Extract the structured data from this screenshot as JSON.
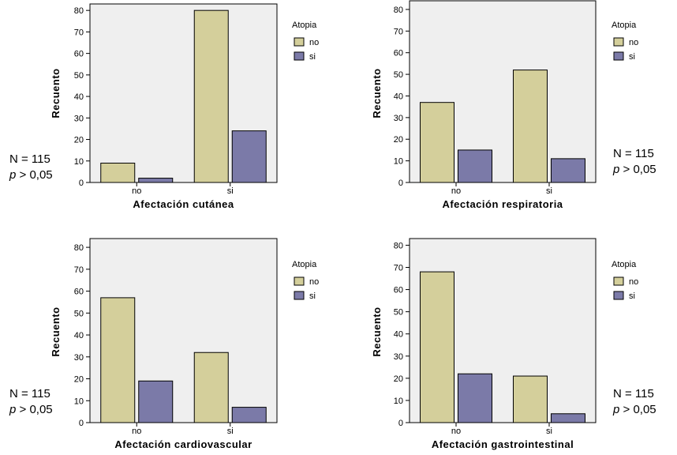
{
  "colors": {
    "no": "#d4cf9b",
    "si": "#7b7aa8",
    "plot_bg": "#efefef",
    "stroke": "#000000"
  },
  "chart_data": [
    {
      "type": "bar",
      "xlabel": "Afectación cutánea",
      "ylabel": "Recuento",
      "categories": [
        "no",
        "si"
      ],
      "series": [
        {
          "name": "no",
          "values": [
            9,
            80
          ]
        },
        {
          "name": "si",
          "values": [
            2,
            24
          ]
        }
      ],
      "yticks": [
        "0",
        "10",
        "20",
        "30",
        "40",
        "50",
        "60",
        "70",
        "80"
      ],
      "ylim": [
        0,
        83
      ],
      "legend": {
        "title": "Atopia",
        "items": [
          "no",
          "si"
        ],
        "placement": "right"
      },
      "stats": {
        "n": "N = 115",
        "p_symbol": "p",
        "p_rest": " > 0,05",
        "placement": "left"
      }
    },
    {
      "type": "bar",
      "xlabel": "Afectación respiratoria",
      "ylabel": "Recuento",
      "categories": [
        "no",
        "si"
      ],
      "series": [
        {
          "name": "no",
          "values": [
            37,
            52
          ]
        },
        {
          "name": "si",
          "values": [
            15,
            11
          ]
        }
      ],
      "yticks": [
        "0",
        "10",
        "20",
        "30",
        "40",
        "50",
        "60",
        "70",
        "80"
      ],
      "ylim": [
        0,
        84
      ],
      "legend": {
        "title": "Atopia",
        "items": [
          "no",
          "si"
        ],
        "placement": "right"
      },
      "stats": {
        "n": "N = 115",
        "p_symbol": "p",
        "p_rest": " > 0,05",
        "placement": "right"
      }
    },
    {
      "type": "bar",
      "xlabel": "Afectación cardiovascular",
      "ylabel": "Recuento",
      "categories": [
        "no",
        "si"
      ],
      "series": [
        {
          "name": "no",
          "values": [
            57,
            32
          ]
        },
        {
          "name": "si",
          "values": [
            19,
            7
          ]
        }
      ],
      "yticks": [
        "0",
        "10",
        "20",
        "30",
        "40",
        "50",
        "60",
        "70",
        "80"
      ],
      "ylim": [
        0,
        84
      ],
      "legend": {
        "title": "Atopia",
        "items": [
          "no",
          "si"
        ],
        "placement": "right"
      },
      "stats": {
        "n": "N = 115",
        "p_symbol": "p",
        "p_rest": " > 0,05",
        "placement": "left"
      }
    },
    {
      "type": "bar",
      "xlabel": "Afectación gastrointestinal",
      "ylabel": "Recuento",
      "categories": [
        "no",
        "si"
      ],
      "series": [
        {
          "name": "no",
          "values": [
            68,
            21
          ]
        },
        {
          "name": "si",
          "values": [
            22,
            4
          ]
        }
      ],
      "yticks": [
        "0",
        "10",
        "20",
        "30",
        "40",
        "50",
        "60",
        "70",
        "80"
      ],
      "ylim": [
        0,
        83
      ],
      "legend": {
        "title": "Atopia",
        "items": [
          "no",
          "si"
        ],
        "placement": "right"
      },
      "stats": {
        "n": "N = 115",
        "p_symbol": "p",
        "p_rest": " > 0,05",
        "placement": "right"
      }
    }
  ]
}
